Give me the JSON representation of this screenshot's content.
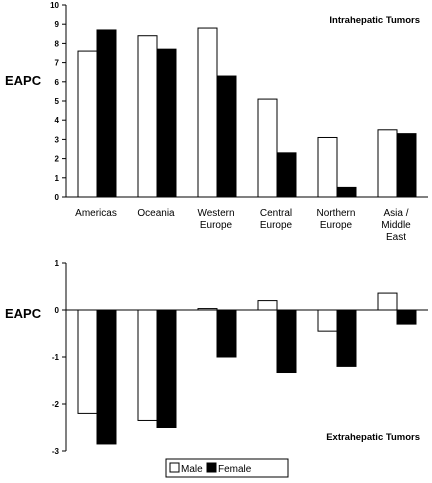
{
  "chart_data": [
    {
      "type": "bar",
      "title": "Intrahepatic Tumors",
      "xlabel": "",
      "ylabel": "EAPC",
      "ylim": [
        0,
        10
      ],
      "yticks": [
        0,
        1,
        2,
        3,
        4,
        5,
        6,
        7,
        8,
        9,
        10
      ],
      "categories": [
        "Americas",
        "Oceania",
        "Western Europe",
        "Central Europe",
        "Northern Europe",
        "Asia / Middle East"
      ],
      "category_lines": [
        [
          "Americas"
        ],
        [
          "Oceania"
        ],
        [
          "Western",
          "Europe"
        ],
        [
          "Central",
          "Europe"
        ],
        [
          "Northern",
          "Europe"
        ],
        [
          "Asia /",
          "Middle",
          "East"
        ]
      ],
      "series": [
        {
          "name": "Male",
          "values": [
            7.6,
            8.4,
            8.8,
            5.1,
            3.1,
            3.5
          ]
        },
        {
          "name": "Female",
          "values": [
            8.7,
            7.7,
            6.3,
            2.3,
            0.5,
            3.3
          ]
        }
      ]
    },
    {
      "type": "bar",
      "title": "Extrahepatic Tumors",
      "xlabel": "",
      "ylabel": "EAPC",
      "ylim": [
        -3,
        1
      ],
      "yticks": [
        1,
        0,
        -1,
        -2,
        -3
      ],
      "categories": [
        "Americas",
        "Oceania",
        "Western Europe",
        "Central Europe",
        "Northern Europe",
        "Asia / Middle East"
      ],
      "series": [
        {
          "name": "Male",
          "values": [
            -2.2,
            -2.35,
            0.03,
            0.2,
            -0.45,
            0.36
          ]
        },
        {
          "name": "Female",
          "values": [
            -2.85,
            -2.5,
            -1.0,
            -1.33,
            -1.2,
            -0.3
          ]
        }
      ]
    }
  ],
  "legend": {
    "position": "bottom-center",
    "items": [
      {
        "label": "Male",
        "color": "#ffffff"
      },
      {
        "label": "Female",
        "color": "#000000"
      }
    ]
  },
  "colors": {
    "male": "#ffffff",
    "female": "#000000",
    "stroke": "#000000"
  }
}
